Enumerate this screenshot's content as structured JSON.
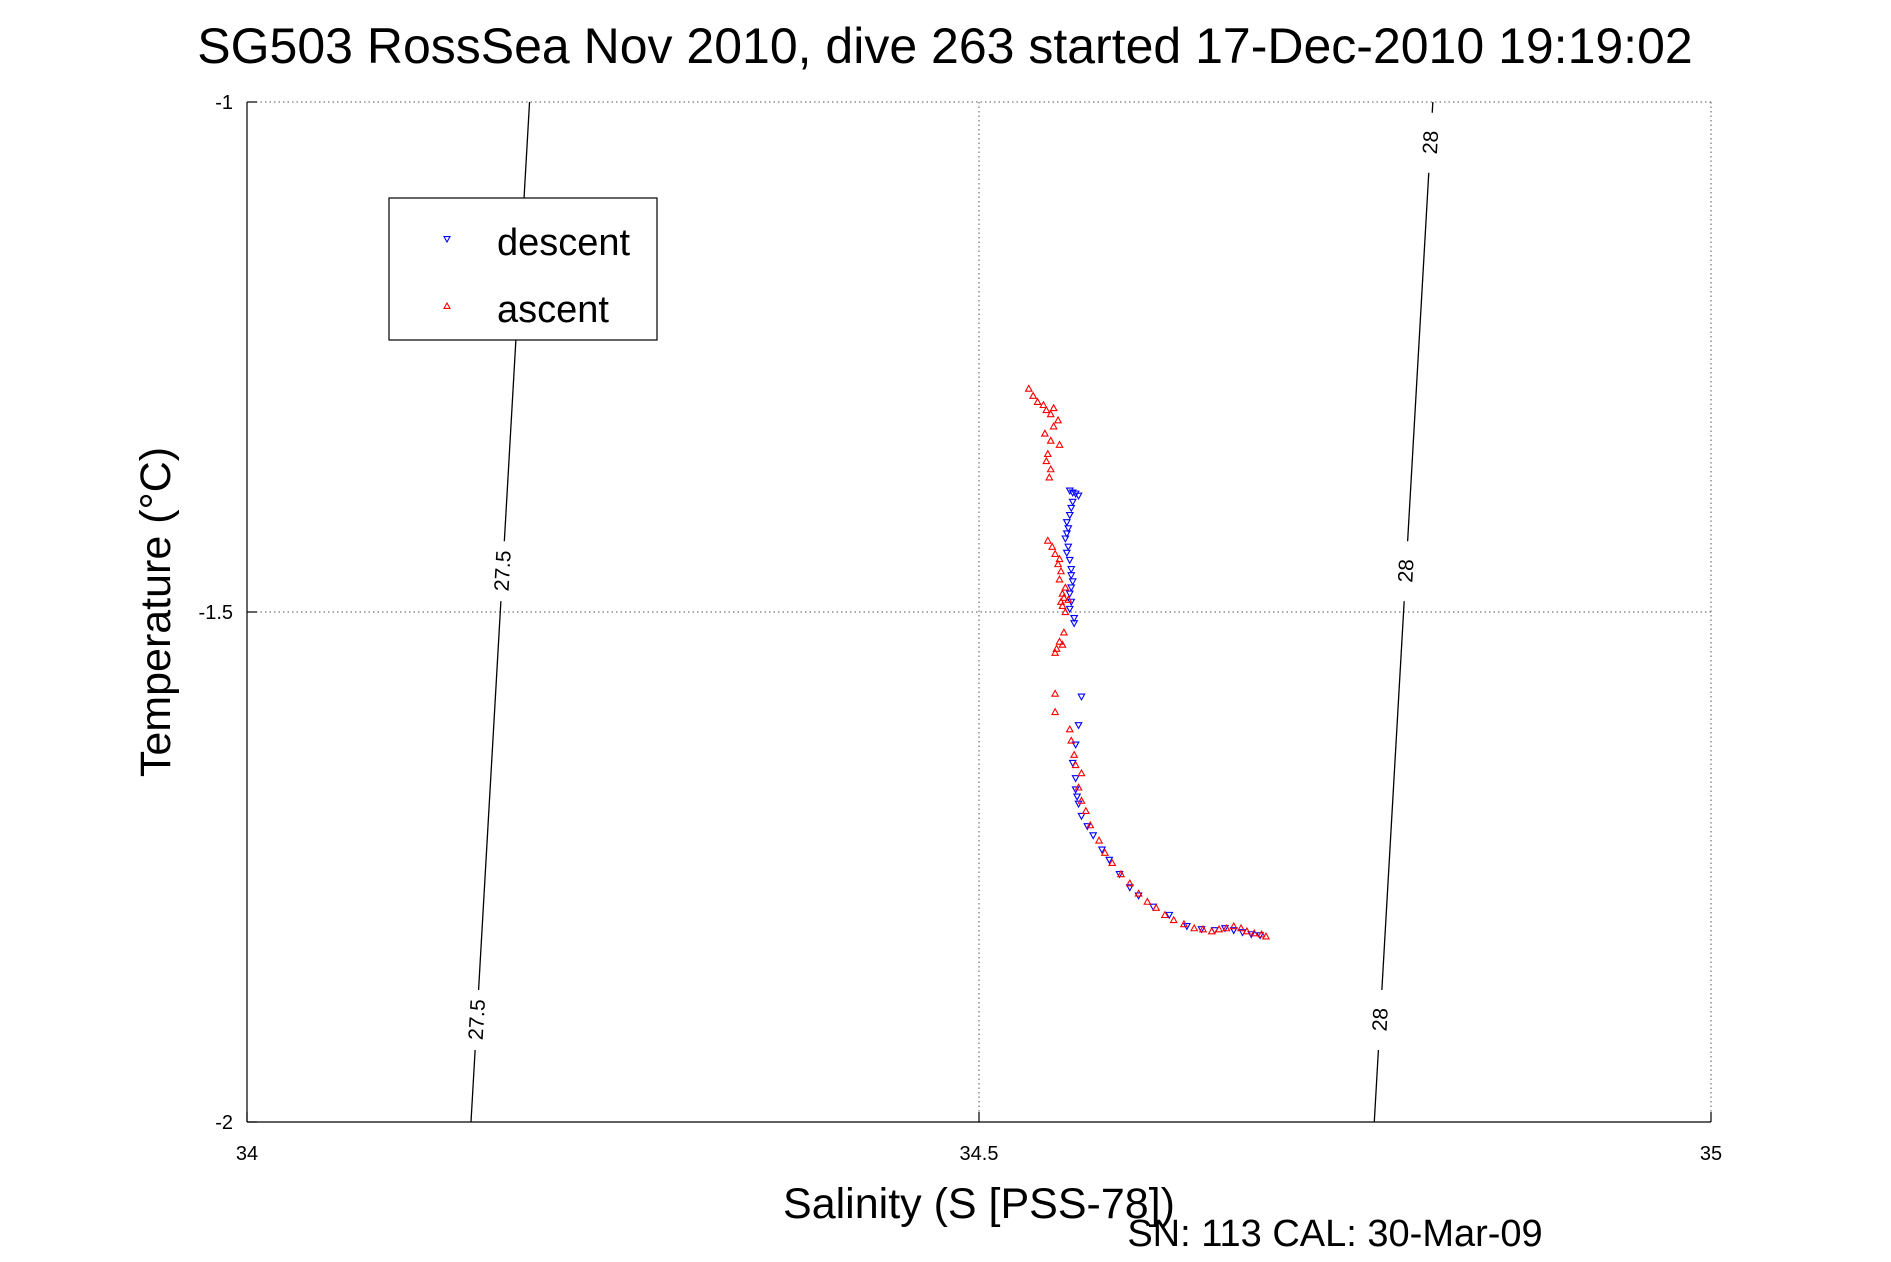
{
  "chart_data": {
    "type": "scatter",
    "title": "SG503 RossSea Nov 2010, dive 263 started 17-Dec-2010 19:19:02",
    "xlabel": "Salinity (S [PSS-78])",
    "ylabel": "Temperature (°C)",
    "xlim": [
      34,
      35
    ],
    "ylim": [
      -2,
      -1
    ],
    "xticks": [
      34,
      34.5,
      35
    ],
    "yticks": [
      -2,
      -1.5,
      -1
    ],
    "xtick_labels": [
      "34",
      "34.5",
      "35"
    ],
    "ytick_labels": [
      "-2",
      "-1.5",
      "-1"
    ],
    "grid": true,
    "legend_position": "top-left",
    "footer": "SN: 113  CAL: 30-Mar-09",
    "colors": {
      "descent": "#0000ff",
      "ascent": "#ff0000",
      "axis": "#000000"
    },
    "isopycnals": [
      {
        "value": "27.5",
        "points": [
          [
            34.153,
            -2.0
          ],
          [
            34.193,
            -1.0
          ]
        ],
        "label_at_y": [
          -1.46,
          -1.9
        ]
      },
      {
        "value": "28",
        "points": [
          [
            34.77,
            -2.0
          ],
          [
            34.81,
            -1.0
          ]
        ],
        "label_at_y": [
          -1.04,
          -1.46,
          -1.9
        ]
      }
    ],
    "series": [
      {
        "name": "descent",
        "marker": "triangle-down",
        "points": [
          [
            34.562,
            -1.381
          ],
          [
            34.564,
            -1.383
          ],
          [
            34.566,
            -1.384
          ],
          [
            34.568,
            -1.386
          ],
          [
            34.564,
            -1.392
          ],
          [
            34.563,
            -1.398
          ],
          [
            34.562,
            -1.405
          ],
          [
            34.56,
            -1.412
          ],
          [
            34.561,
            -1.418
          ],
          [
            34.56,
            -1.423
          ],
          [
            34.559,
            -1.428
          ],
          [
            34.561,
            -1.436
          ],
          [
            34.56,
            -1.442
          ],
          [
            34.562,
            -1.449
          ],
          [
            34.563,
            -1.458
          ],
          [
            34.563,
            -1.464
          ],
          [
            34.564,
            -1.47
          ],
          [
            34.563,
            -1.476
          ],
          [
            34.562,
            -1.482
          ],
          [
            34.563,
            -1.49
          ],
          [
            34.562,
            -1.497
          ],
          [
            34.565,
            -1.506
          ],
          [
            34.565,
            -1.511
          ],
          [
            34.57,
            -1.583
          ],
          [
            34.568,
            -1.611
          ],
          [
            34.566,
            -1.63
          ],
          [
            34.564,
            -1.648
          ],
          [
            34.566,
            -1.663
          ],
          [
            34.566,
            -1.674
          ],
          [
            34.567,
            -1.681
          ],
          [
            34.568,
            -1.688
          ],
          [
            34.57,
            -1.7
          ],
          [
            34.574,
            -1.71
          ],
          [
            34.578,
            -1.719
          ],
          [
            34.584,
            -1.733
          ],
          [
            34.589,
            -1.743
          ],
          [
            34.596,
            -1.757
          ],
          [
            34.603,
            -1.77
          ],
          [
            34.609,
            -1.778
          ],
          [
            34.619,
            -1.789
          ],
          [
            34.63,
            -1.797
          ],
          [
            34.642,
            -1.808
          ],
          [
            34.652,
            -1.811
          ],
          [
            34.661,
            -1.812
          ],
          [
            34.668,
            -1.81
          ],
          [
            34.674,
            -1.812
          ],
          [
            34.68,
            -1.814
          ],
          [
            34.686,
            -1.816
          ],
          [
            34.692,
            -1.817
          ]
        ]
      },
      {
        "name": "ascent",
        "marker": "triangle-up",
        "points": [
          [
            34.534,
            -1.281
          ],
          [
            34.537,
            -1.288
          ],
          [
            34.54,
            -1.294
          ],
          [
            34.544,
            -1.297
          ],
          [
            34.546,
            -1.302
          ],
          [
            34.549,
            -1.306
          ],
          [
            34.551,
            -1.3
          ],
          [
            34.554,
            -1.312
          ],
          [
            34.551,
            -1.318
          ],
          [
            34.545,
            -1.325
          ],
          [
            34.549,
            -1.332
          ],
          [
            34.555,
            -1.336
          ],
          [
            34.547,
            -1.345
          ],
          [
            34.546,
            -1.352
          ],
          [
            34.549,
            -1.36
          ],
          [
            34.548,
            -1.368
          ],
          [
            34.547,
            -1.43
          ],
          [
            34.55,
            -1.436
          ],
          [
            34.552,
            -1.443
          ],
          [
            34.555,
            -1.448
          ],
          [
            34.554,
            -1.453
          ],
          [
            34.556,
            -1.46
          ],
          [
            34.555,
            -1.468
          ],
          [
            34.559,
            -1.476
          ],
          [
            34.557,
            -1.482
          ],
          [
            34.558,
            -1.486
          ],
          [
            34.556,
            -1.49
          ],
          [
            34.561,
            -1.488
          ],
          [
            34.557,
            -1.494
          ],
          [
            34.559,
            -1.5
          ],
          [
            34.558,
            -1.52
          ],
          [
            34.555,
            -1.529
          ],
          [
            34.557,
            -1.532
          ],
          [
            34.553,
            -1.536
          ],
          [
            34.552,
            -1.54
          ],
          [
            34.552,
            -1.58
          ],
          [
            34.552,
            -1.598
          ],
          [
            34.562,
            -1.615
          ],
          [
            34.563,
            -1.626
          ],
          [
            34.565,
            -1.64
          ],
          [
            34.566,
            -1.65
          ],
          [
            34.57,
            -1.658
          ],
          [
            34.568,
            -1.672
          ],
          [
            34.57,
            -1.685
          ],
          [
            34.573,
            -1.695
          ],
          [
            34.576,
            -1.709
          ],
          [
            34.582,
            -1.724
          ],
          [
            34.586,
            -1.736
          ],
          [
            34.591,
            -1.746
          ],
          [
            34.597,
            -1.757
          ],
          [
            34.603,
            -1.766
          ],
          [
            34.609,
            -1.776
          ],
          [
            34.615,
            -1.784
          ],
          [
            34.621,
            -1.79
          ],
          [
            34.627,
            -1.797
          ],
          [
            34.633,
            -1.802
          ],
          [
            34.64,
            -1.806
          ],
          [
            34.647,
            -1.81
          ],
          [
            34.653,
            -1.811
          ],
          [
            34.659,
            -1.813
          ],
          [
            34.664,
            -1.811
          ],
          [
            34.669,
            -1.81
          ],
          [
            34.674,
            -1.808
          ],
          [
            34.679,
            -1.81
          ],
          [
            34.683,
            -1.813
          ],
          [
            34.688,
            -1.815
          ],
          [
            34.693,
            -1.816
          ],
          [
            34.696,
            -1.818
          ]
        ]
      }
    ]
  }
}
